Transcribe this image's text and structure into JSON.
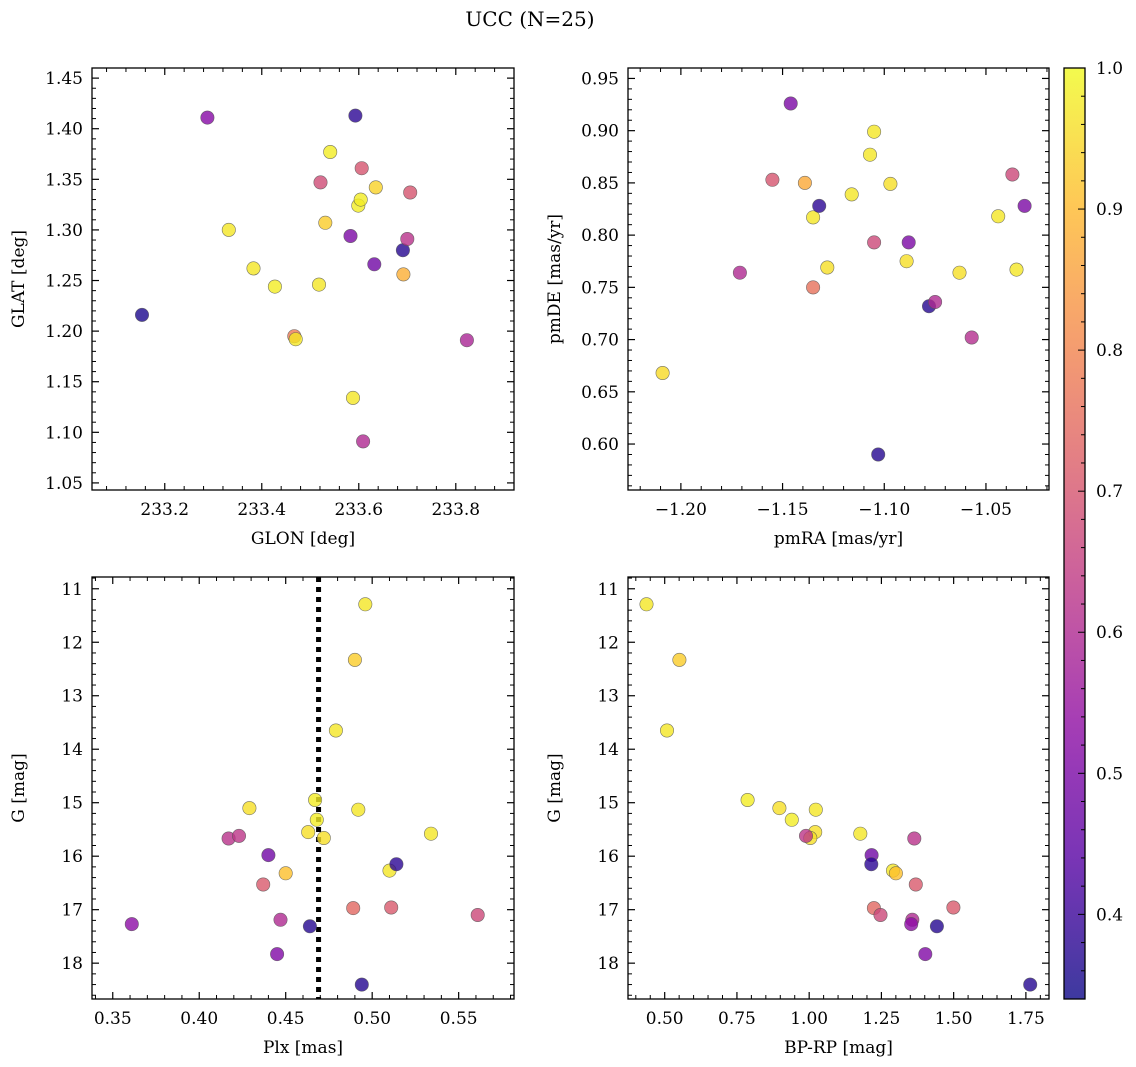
{
  "figure": {
    "title": "UCC (N=25)",
    "colorbar": {
      "min": 0.34,
      "max": 1.0,
      "ticks": [
        "0.4",
        "0.5",
        "0.6",
        "0.7",
        "0.8",
        "0.9",
        "1.0"
      ],
      "colormap": "plasma",
      "marker_alpha": 0.8,
      "marker_edge": "#555555"
    }
  },
  "chart_data": [
    {
      "type": "scatter",
      "panel": "top-left",
      "title": "",
      "xlabel": "GLON [deg]",
      "ylabel": "GLAT [deg]",
      "xlim": [
        233.05,
        233.92
      ],
      "ylim": [
        1.043,
        1.46
      ],
      "grid": false,
      "xticks": [
        233.2,
        233.4,
        233.6,
        233.8
      ],
      "xtick_labels": [
        "233.2",
        "233.4",
        "233.6",
        "233.8"
      ],
      "yticks": [
        1.05,
        1.1,
        1.15,
        1.2,
        1.25,
        1.3,
        1.35,
        1.4,
        1.45
      ],
      "ytick_labels": [
        "1.05",
        "1.10",
        "1.15",
        "1.20",
        "1.25",
        "1.30",
        "1.35",
        "1.40",
        "1.45"
      ],
      "points": [
        {
          "x": 233.153,
          "y": 1.216,
          "c": 0.36
        },
        {
          "x": 233.288,
          "y": 1.411,
          "c": 0.52
        },
        {
          "x": 233.332,
          "y": 1.3,
          "c": 0.97
        },
        {
          "x": 233.383,
          "y": 1.262,
          "c": 0.97
        },
        {
          "x": 233.427,
          "y": 1.244,
          "c": 0.98
        },
        {
          "x": 233.467,
          "y": 1.195,
          "c": 0.78
        },
        {
          "x": 233.47,
          "y": 1.192,
          "c": 0.97
        },
        {
          "x": 233.518,
          "y": 1.246,
          "c": 0.97
        },
        {
          "x": 233.521,
          "y": 1.347,
          "c": 0.68
        },
        {
          "x": 233.531,
          "y": 1.307,
          "c": 0.93
        },
        {
          "x": 233.541,
          "y": 1.377,
          "c": 0.98
        },
        {
          "x": 233.583,
          "y": 1.294,
          "c": 0.5
        },
        {
          "x": 233.588,
          "y": 1.134,
          "c": 0.97
        },
        {
          "x": 233.593,
          "y": 1.413,
          "c": 0.38
        },
        {
          "x": 233.599,
          "y": 1.324,
          "c": 0.98
        },
        {
          "x": 233.604,
          "y": 1.33,
          "c": 0.98
        },
        {
          "x": 233.606,
          "y": 1.361,
          "c": 0.7
        },
        {
          "x": 233.609,
          "y": 1.091,
          "c": 0.6
        },
        {
          "x": 233.632,
          "y": 1.266,
          "c": 0.48
        },
        {
          "x": 233.635,
          "y": 1.342,
          "c": 0.94
        },
        {
          "x": 233.691,
          "y": 1.28,
          "c": 0.37
        },
        {
          "x": 233.692,
          "y": 1.256,
          "c": 0.88
        },
        {
          "x": 233.7,
          "y": 1.291,
          "c": 0.62
        },
        {
          "x": 233.706,
          "y": 1.337,
          "c": 0.7
        },
        {
          "x": 233.823,
          "y": 1.191,
          "c": 0.59
        }
      ]
    },
    {
      "type": "scatter",
      "panel": "top-right",
      "title": "",
      "xlabel": "pmRA [mas/yr]",
      "ylabel": "pmDE [mas/yr]",
      "xlim": [
        -1.226,
        -1.019
      ],
      "ylim": [
        0.556,
        0.96
      ],
      "grid": false,
      "xticks": [
        -1.2,
        -1.15,
        -1.1,
        -1.05
      ],
      "xtick_labels": [
        "−1.20",
        "−1.15",
        "−1.10",
        "−1.05"
      ],
      "yticks": [
        0.6,
        0.65,
        0.7,
        0.75,
        0.8,
        0.85,
        0.9,
        0.95
      ],
      "ytick_labels": [
        "0.60",
        "0.65",
        "0.70",
        "0.75",
        "0.80",
        "0.85",
        "0.90",
        "0.95"
      ],
      "points": [
        {
          "x": -1.209,
          "y": 0.668,
          "c": 0.95
        },
        {
          "x": -1.171,
          "y": 0.764,
          "c": 0.6
        },
        {
          "x": -1.155,
          "y": 0.853,
          "c": 0.7
        },
        {
          "x": -1.146,
          "y": 0.926,
          "c": 0.5
        },
        {
          "x": -1.139,
          "y": 0.85,
          "c": 0.87
        },
        {
          "x": -1.135,
          "y": 0.817,
          "c": 0.97
        },
        {
          "x": -1.135,
          "y": 0.75,
          "c": 0.76
        },
        {
          "x": -1.132,
          "y": 0.828,
          "c": 0.38
        },
        {
          "x": -1.128,
          "y": 0.769,
          "c": 0.96
        },
        {
          "x": -1.116,
          "y": 0.839,
          "c": 0.97
        },
        {
          "x": -1.107,
          "y": 0.877,
          "c": 0.97
        },
        {
          "x": -1.105,
          "y": 0.899,
          "c": 0.97
        },
        {
          "x": -1.105,
          "y": 0.793,
          "c": 0.67
        },
        {
          "x": -1.103,
          "y": 0.59,
          "c": 0.37
        },
        {
          "x": -1.097,
          "y": 0.849,
          "c": 0.96
        },
        {
          "x": -1.089,
          "y": 0.775,
          "c": 0.96
        },
        {
          "x": -1.088,
          "y": 0.793,
          "c": 0.5
        },
        {
          "x": -1.078,
          "y": 0.732,
          "c": 0.37
        },
        {
          "x": -1.075,
          "y": 0.736,
          "c": 0.6
        },
        {
          "x": -1.063,
          "y": 0.764,
          "c": 0.96
        },
        {
          "x": -1.057,
          "y": 0.702,
          "c": 0.61
        },
        {
          "x": -1.044,
          "y": 0.818,
          "c": 0.97
        },
        {
          "x": -1.037,
          "y": 0.858,
          "c": 0.67
        },
        {
          "x": -1.035,
          "y": 0.767,
          "c": 0.97
        },
        {
          "x": -1.031,
          "y": 0.828,
          "c": 0.5
        }
      ]
    },
    {
      "type": "scatter",
      "panel": "bottom-left",
      "title": "",
      "xlabel": "Plx [mas]",
      "ylabel": "G [mag]",
      "xlim": [
        0.338,
        0.582
      ],
      "ylim": [
        18.67,
        10.78
      ],
      "inverted_y": true,
      "grid": false,
      "vline": {
        "x": 0.469,
        "style": "dotted",
        "color": "#000000"
      },
      "xticks": [
        0.35,
        0.4,
        0.45,
        0.5,
        0.55
      ],
      "xtick_labels": [
        "0.35",
        "0.40",
        "0.45",
        "0.50",
        "0.55"
      ],
      "yticks": [
        11,
        12,
        13,
        14,
        15,
        16,
        17,
        18
      ],
      "ytick_labels": [
        "11",
        "12",
        "13",
        "14",
        "15",
        "16",
        "17",
        "18"
      ],
      "points": [
        {
          "x": 0.361,
          "y": 17.27,
          "c": 0.53
        },
        {
          "x": 0.417,
          "y": 15.67,
          "c": 0.62
        },
        {
          "x": 0.423,
          "y": 15.62,
          "c": 0.63
        },
        {
          "x": 0.429,
          "y": 15.1,
          "c": 0.96
        },
        {
          "x": 0.437,
          "y": 16.53,
          "c": 0.71
        },
        {
          "x": 0.44,
          "y": 15.98,
          "c": 0.48
        },
        {
          "x": 0.445,
          "y": 17.83,
          "c": 0.51
        },
        {
          "x": 0.447,
          "y": 17.19,
          "c": 0.6
        },
        {
          "x": 0.45,
          "y": 16.32,
          "c": 0.91
        },
        {
          "x": 0.463,
          "y": 15.55,
          "c": 0.96
        },
        {
          "x": 0.464,
          "y": 17.31,
          "c": 0.37
        },
        {
          "x": 0.467,
          "y": 14.95,
          "c": 0.98
        },
        {
          "x": 0.468,
          "y": 15.32,
          "c": 0.98
        },
        {
          "x": 0.472,
          "y": 15.66,
          "c": 0.96
        },
        {
          "x": 0.479,
          "y": 13.65,
          "c": 0.97
        },
        {
          "x": 0.489,
          "y": 16.97,
          "c": 0.74
        },
        {
          "x": 0.49,
          "y": 12.33,
          "c": 0.93
        },
        {
          "x": 0.492,
          "y": 15.13,
          "c": 0.97
        },
        {
          "x": 0.494,
          "y": 18.4,
          "c": 0.37
        },
        {
          "x": 0.496,
          "y": 11.29,
          "c": 0.97
        },
        {
          "x": 0.51,
          "y": 16.27,
          "c": 0.97
        },
        {
          "x": 0.511,
          "y": 16.96,
          "c": 0.71
        },
        {
          "x": 0.514,
          "y": 16.15,
          "c": 0.38
        },
        {
          "x": 0.534,
          "y": 15.58,
          "c": 0.97
        },
        {
          "x": 0.561,
          "y": 17.1,
          "c": 0.67
        }
      ]
    },
    {
      "type": "scatter",
      "panel": "bottom-right",
      "title": "",
      "xlabel": "BP-RP [mag]",
      "ylabel": "G [mag]",
      "xlim": [
        0.373,
        1.83
      ],
      "ylim": [
        18.67,
        10.78
      ],
      "inverted_y": true,
      "grid": false,
      "xticks": [
        0.5,
        0.75,
        1.0,
        1.25,
        1.5,
        1.75
      ],
      "xtick_labels": [
        "0.50",
        "0.75",
        "1.00",
        "1.25",
        "1.50",
        "1.75"
      ],
      "yticks": [
        11,
        12,
        13,
        14,
        15,
        16,
        17,
        18
      ],
      "ytick_labels": [
        "11",
        "12",
        "13",
        "14",
        "15",
        "16",
        "17",
        "18"
      ],
      "points": [
        {
          "x": 0.437,
          "y": 11.29,
          "c": 0.97
        },
        {
          "x": 0.551,
          "y": 12.33,
          "c": 0.93
        },
        {
          "x": 0.508,
          "y": 13.65,
          "c": 0.97
        },
        {
          "x": 0.787,
          "y": 14.95,
          "c": 0.98
        },
        {
          "x": 0.897,
          "y": 15.1,
          "c": 0.96
        },
        {
          "x": 0.94,
          "y": 15.32,
          "c": 0.98
        },
        {
          "x": 1.023,
          "y": 15.13,
          "c": 0.97
        },
        {
          "x": 1.021,
          "y": 15.55,
          "c": 0.96
        },
        {
          "x": 1.004,
          "y": 15.66,
          "c": 0.96
        },
        {
          "x": 0.989,
          "y": 15.62,
          "c": 0.63
        },
        {
          "x": 1.177,
          "y": 15.58,
          "c": 0.97
        },
        {
          "x": 1.364,
          "y": 15.67,
          "c": 0.62
        },
        {
          "x": 1.216,
          "y": 15.98,
          "c": 0.48
        },
        {
          "x": 1.215,
          "y": 16.15,
          "c": 0.38
        },
        {
          "x": 1.29,
          "y": 16.27,
          "c": 0.97
        },
        {
          "x": 1.3,
          "y": 16.32,
          "c": 0.91
        },
        {
          "x": 1.369,
          "y": 16.53,
          "c": 0.71
        },
        {
          "x": 1.224,
          "y": 16.97,
          "c": 0.74
        },
        {
          "x": 1.499,
          "y": 16.96,
          "c": 0.71
        },
        {
          "x": 1.247,
          "y": 17.1,
          "c": 0.67
        },
        {
          "x": 1.357,
          "y": 17.19,
          "c": 0.6
        },
        {
          "x": 1.353,
          "y": 17.27,
          "c": 0.53
        },
        {
          "x": 1.442,
          "y": 17.31,
          "c": 0.37
        },
        {
          "x": 1.402,
          "y": 17.83,
          "c": 0.51
        },
        {
          "x": 1.765,
          "y": 18.4,
          "c": 0.37
        }
      ]
    }
  ]
}
